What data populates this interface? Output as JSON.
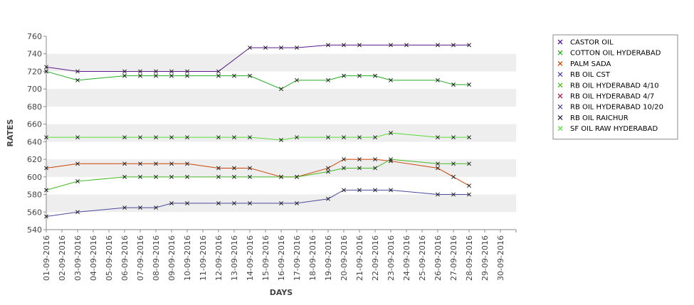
{
  "chart_data": {
    "type": "line",
    "title": "",
    "xlabel": "DAYS",
    "ylabel": "RATES",
    "ylim": [
      540,
      760
    ],
    "y_ticks": [
      540,
      560,
      580,
      600,
      620,
      640,
      660,
      680,
      700,
      720,
      740,
      760
    ],
    "grid": "alternating horizontal bands",
    "legend_position": "right",
    "categories": [
      "01-09-2016",
      "02-09-2016",
      "03-09-2016",
      "04-09-2016",
      "05-09-2016",
      "06-09-2016",
      "07-09-2016",
      "08-09-2016",
      "09-09-2016",
      "10-09-2016",
      "11-09-2016",
      "12-09-2016",
      "13-09-2016",
      "14-09-2016",
      "15-09-2016",
      "16-09-2016",
      "17-09-2016",
      "18-09-2016",
      "19-09-2016",
      "20-09-2016",
      "21-09-2016",
      "22-09-2016",
      "23-09-2016",
      "24-09-2016",
      "25-09-2016",
      "26-09-2016",
      "27-09-2016",
      "28-09-2016",
      "29-09-2016",
      "30-09-2016"
    ],
    "series": [
      {
        "name": "CASTOR OIL",
        "color": "#5a1a8c",
        "points": [
          [
            "01-09-2016",
            725
          ],
          [
            "03-09-2016",
            720
          ],
          [
            "06-09-2016",
            720
          ],
          [
            "07-09-2016",
            720
          ],
          [
            "08-09-2016",
            720
          ],
          [
            "09-09-2016",
            720
          ],
          [
            "10-09-2016",
            720
          ],
          [
            "12-09-2016",
            720
          ],
          [
            "14-09-2016",
            747
          ],
          [
            "15-09-2016",
            747
          ],
          [
            "16-09-2016",
            747
          ],
          [
            "17-09-2016",
            747
          ],
          [
            "19-09-2016",
            750
          ],
          [
            "20-09-2016",
            750
          ],
          [
            "21-09-2016",
            750
          ],
          [
            "23-09-2016",
            750
          ],
          [
            "24-09-2016",
            750
          ],
          [
            "26-09-2016",
            750
          ],
          [
            "27-09-2016",
            750
          ],
          [
            "28-09-2016",
            750
          ]
        ]
      },
      {
        "name": "COTTON OIL HYDERABAD",
        "color": "#22aa22",
        "points": [
          [
            "01-09-2016",
            720
          ],
          [
            "03-09-2016",
            710
          ],
          [
            "06-09-2016",
            715
          ],
          [
            "07-09-2016",
            715
          ],
          [
            "08-09-2016",
            715
          ],
          [
            "09-09-2016",
            715
          ],
          [
            "10-09-2016",
            715
          ],
          [
            "12-09-2016",
            715
          ],
          [
            "13-09-2016",
            715
          ],
          [
            "14-09-2016",
            715
          ],
          [
            "16-09-2016",
            700
          ],
          [
            "17-09-2016",
            710
          ],
          [
            "19-09-2016",
            710
          ],
          [
            "20-09-2016",
            715
          ],
          [
            "21-09-2016",
            715
          ],
          [
            "22-09-2016",
            715
          ],
          [
            "23-09-2016",
            710
          ],
          [
            "26-09-2016",
            710
          ],
          [
            "27-09-2016",
            705
          ],
          [
            "28-09-2016",
            705
          ]
        ]
      },
      {
        "name": "PALM SADA",
        "color": "#cc4400",
        "points": [
          [
            "01-09-2016",
            610
          ],
          [
            "03-09-2016",
            615
          ],
          [
            "06-09-2016",
            615
          ],
          [
            "07-09-2016",
            615
          ],
          [
            "08-09-2016",
            615
          ],
          [
            "09-09-2016",
            615
          ],
          [
            "10-09-2016",
            615
          ],
          [
            "12-09-2016",
            610
          ],
          [
            "13-09-2016",
            610
          ],
          [
            "14-09-2016",
            610
          ],
          [
            "16-09-2016",
            600
          ],
          [
            "17-09-2016",
            600
          ],
          [
            "19-09-2016",
            610
          ],
          [
            "20-09-2016",
            620
          ],
          [
            "21-09-2016",
            620
          ],
          [
            "22-09-2016",
            620
          ],
          [
            "23-09-2016",
            618
          ],
          [
            "26-09-2016",
            610
          ],
          [
            "27-09-2016",
            600
          ],
          [
            "28-09-2016",
            590
          ]
        ]
      },
      {
        "name": "RB OIL CST",
        "color": "#4444aa",
        "points": []
      },
      {
        "name": "RB OIL HYDERABAD  4/10",
        "color": "#44bb22",
        "points": [
          [
            "01-09-2016",
            585
          ],
          [
            "03-09-2016",
            595
          ],
          [
            "06-09-2016",
            600
          ],
          [
            "07-09-2016",
            600
          ],
          [
            "08-09-2016",
            600
          ],
          [
            "09-09-2016",
            600
          ],
          [
            "10-09-2016",
            600
          ],
          [
            "12-09-2016",
            600
          ],
          [
            "13-09-2016",
            600
          ],
          [
            "14-09-2016",
            600
          ],
          [
            "16-09-2016",
            600
          ],
          [
            "17-09-2016",
            600
          ],
          [
            "19-09-2016",
            606
          ],
          [
            "20-09-2016",
            610
          ],
          [
            "21-09-2016",
            610
          ],
          [
            "22-09-2016",
            610
          ],
          [
            "23-09-2016",
            620
          ],
          [
            "26-09-2016",
            615
          ],
          [
            "27-09-2016",
            615
          ],
          [
            "28-09-2016",
            615
          ]
        ]
      },
      {
        "name": "RB OIL HYDERABAD  4/7",
        "color": "#aa2255",
        "points": []
      },
      {
        "name": "RB OIL HYDERABAD 10/20",
        "color": "#4a4a9a",
        "points": [
          [
            "01-09-2016",
            555
          ],
          [
            "03-09-2016",
            560
          ],
          [
            "06-09-2016",
            565
          ],
          [
            "07-09-2016",
            565
          ],
          [
            "08-09-2016",
            565
          ],
          [
            "09-09-2016",
            570
          ],
          [
            "10-09-2016",
            570
          ],
          [
            "12-09-2016",
            570
          ],
          [
            "13-09-2016",
            570
          ],
          [
            "14-09-2016",
            570
          ],
          [
            "16-09-2016",
            570
          ],
          [
            "17-09-2016",
            570
          ],
          [
            "19-09-2016",
            575
          ],
          [
            "20-09-2016",
            585
          ],
          [
            "21-09-2016",
            585
          ],
          [
            "22-09-2016",
            585
          ],
          [
            "23-09-2016",
            585
          ],
          [
            "26-09-2016",
            580
          ],
          [
            "27-09-2016",
            580
          ],
          [
            "28-09-2016",
            580
          ]
        ]
      },
      {
        "name": "RB OIL RAICHUR",
        "color": "#222244",
        "points": []
      },
      {
        "name": "SF OIL RAW HYDERABAD",
        "color": "#55dd33",
        "points": [
          [
            "01-09-2016",
            645
          ],
          [
            "03-09-2016",
            645
          ],
          [
            "06-09-2016",
            645
          ],
          [
            "07-09-2016",
            645
          ],
          [
            "08-09-2016",
            645
          ],
          [
            "09-09-2016",
            645
          ],
          [
            "10-09-2016",
            645
          ],
          [
            "12-09-2016",
            645
          ],
          [
            "13-09-2016",
            645
          ],
          [
            "14-09-2016",
            645
          ],
          [
            "16-09-2016",
            642
          ],
          [
            "17-09-2016",
            645
          ],
          [
            "19-09-2016",
            645
          ],
          [
            "20-09-2016",
            645
          ],
          [
            "21-09-2016",
            645
          ],
          [
            "22-09-2016",
            645
          ],
          [
            "23-09-2016",
            650
          ],
          [
            "26-09-2016",
            645
          ],
          [
            "27-09-2016",
            645
          ],
          [
            "28-09-2016",
            645
          ]
        ]
      }
    ]
  }
}
